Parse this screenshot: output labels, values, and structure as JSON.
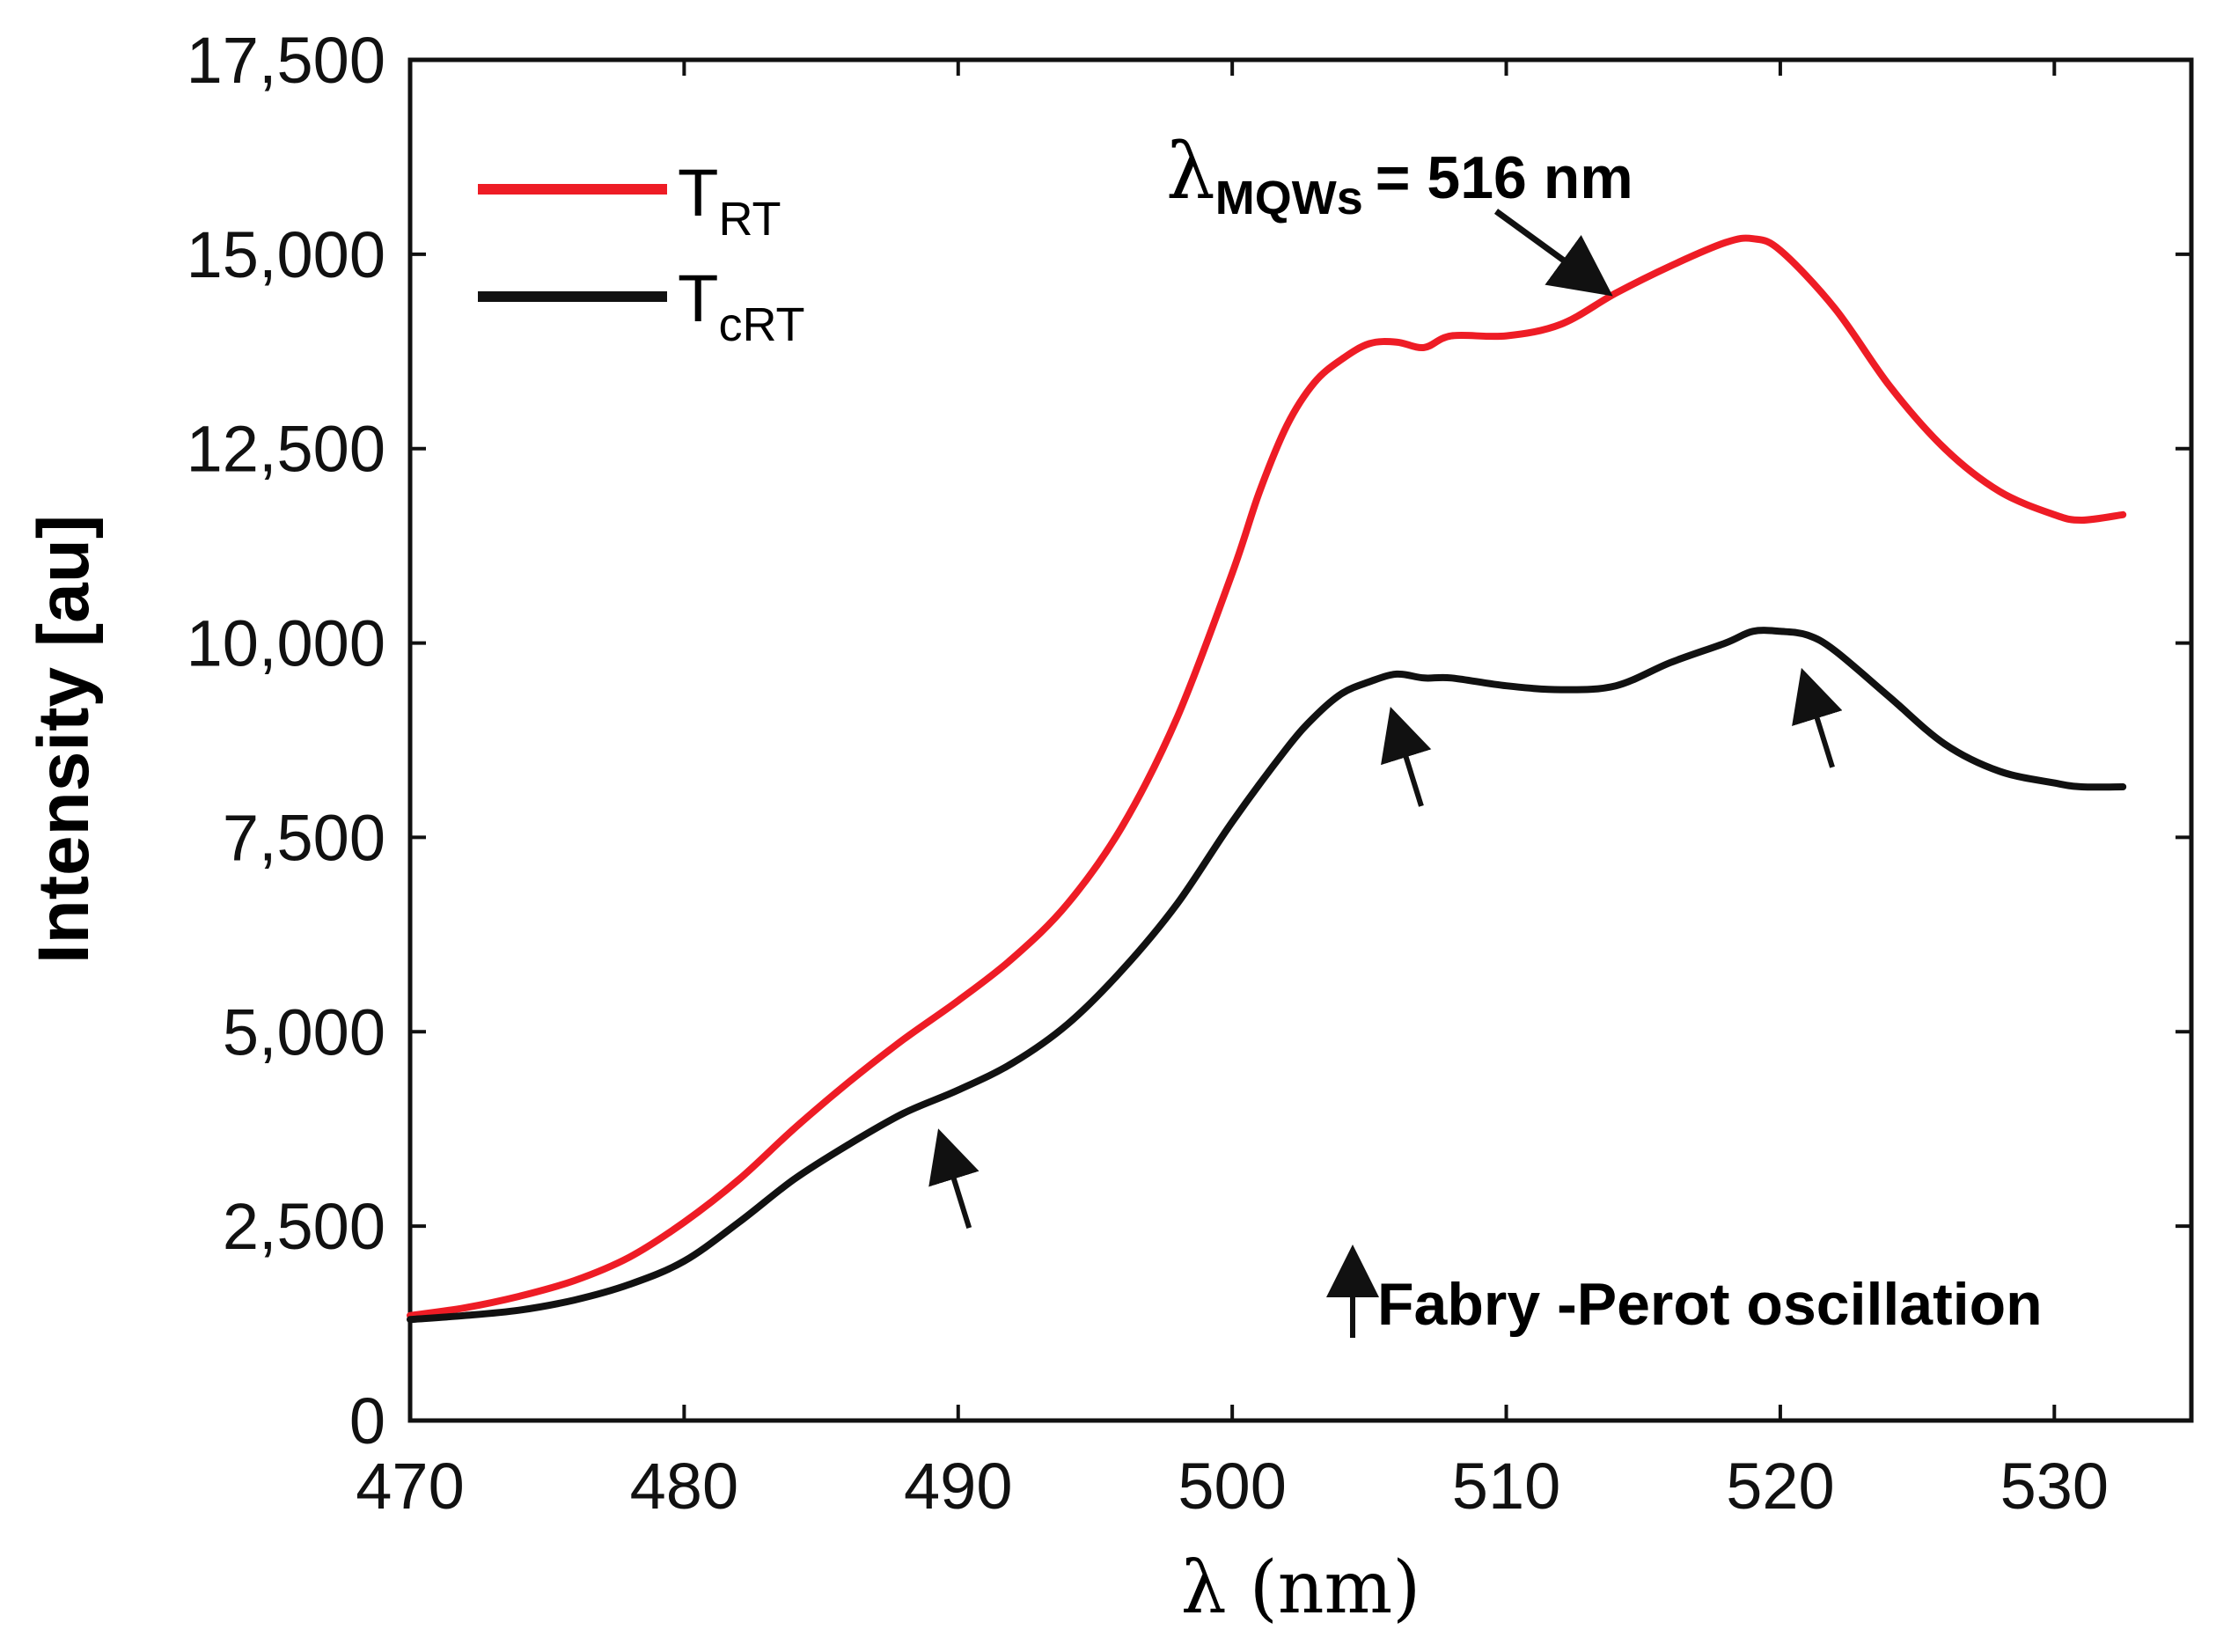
{
  "chart_data": {
    "type": "line",
    "xlabel": "λ (nm)",
    "ylabel": "Intensity [au]",
    "xlim": [
      470,
      535
    ],
    "ylim": [
      0,
      17500
    ],
    "x_ticks": [
      470,
      480,
      490,
      500,
      510,
      520,
      530
    ],
    "x_tick_labels": [
      "470",
      "480",
      "490",
      "500",
      "510",
      "520",
      "530"
    ],
    "y_ticks": [
      0,
      2500,
      5000,
      7500,
      10000,
      12500,
      15000,
      17500
    ],
    "y_tick_labels": [
      "0",
      "2,500",
      "5,000",
      "7,500",
      "10,000",
      "12,500",
      "15,000",
      "17,500"
    ],
    "legend_position": "top-left",
    "series": [
      {
        "name": "TRT",
        "legend_main": "T",
        "legend_sub": "RT",
        "color": "#ee1c25",
        "x": [
          470,
          472,
          474,
          476,
          478,
          480,
          482,
          484,
          486,
          488,
          490,
          492,
          494,
          496,
          498,
          500,
          501,
          502,
          503,
          504,
          505,
          506,
          507,
          508,
          510,
          512,
          514,
          516,
          518,
          519,
          520,
          522,
          524,
          526,
          528,
          530,
          531,
          532.5
        ],
        "y": [
          1350,
          1450,
          1600,
          1800,
          2100,
          2550,
          3100,
          3750,
          4350,
          4900,
          5400,
          5950,
          6650,
          7650,
          9050,
          10900,
          11950,
          12800,
          13350,
          13650,
          13850,
          13870,
          13800,
          13950,
          13950,
          14100,
          14500,
          14850,
          15150,
          15200,
          15050,
          14300,
          13300,
          12500,
          11950,
          11650,
          11580,
          11650
        ]
      },
      {
        "name": "TcRT",
        "legend_main": "T",
        "legend_sub": "cRT",
        "color": "#111111",
        "x": [
          470,
          472,
          474,
          476,
          478,
          480,
          482,
          484,
          486,
          488,
          490,
          492,
          494,
          496,
          498,
          500,
          502,
          503,
          504,
          505,
          506,
          507,
          508,
          510,
          512,
          514,
          516,
          518,
          519,
          520,
          521,
          522,
          524,
          526,
          528,
          530,
          531,
          532.5
        ],
        "y": [
          1300,
          1350,
          1420,
          1550,
          1750,
          2050,
          2550,
          3100,
          3550,
          3950,
          4250,
          4600,
          5100,
          5800,
          6650,
          7700,
          8650,
          9050,
          9350,
          9500,
          9600,
          9550,
          9550,
          9450,
          9400,
          9450,
          9750,
          10000,
          10150,
          10150,
          10100,
          9900,
          9300,
          8700,
          8350,
          8200,
          8150,
          8150
        ]
      }
    ],
    "annotations": {
      "peak_label_symbol": "λ",
      "peak_label_sub": "MQWs",
      "peak_label_value": "= 516 nm",
      "fabry_perot_label": "Fabry -Perot oscillation",
      "oscillation_markers_nm": [
        489.5,
        506,
        521
      ]
    }
  }
}
